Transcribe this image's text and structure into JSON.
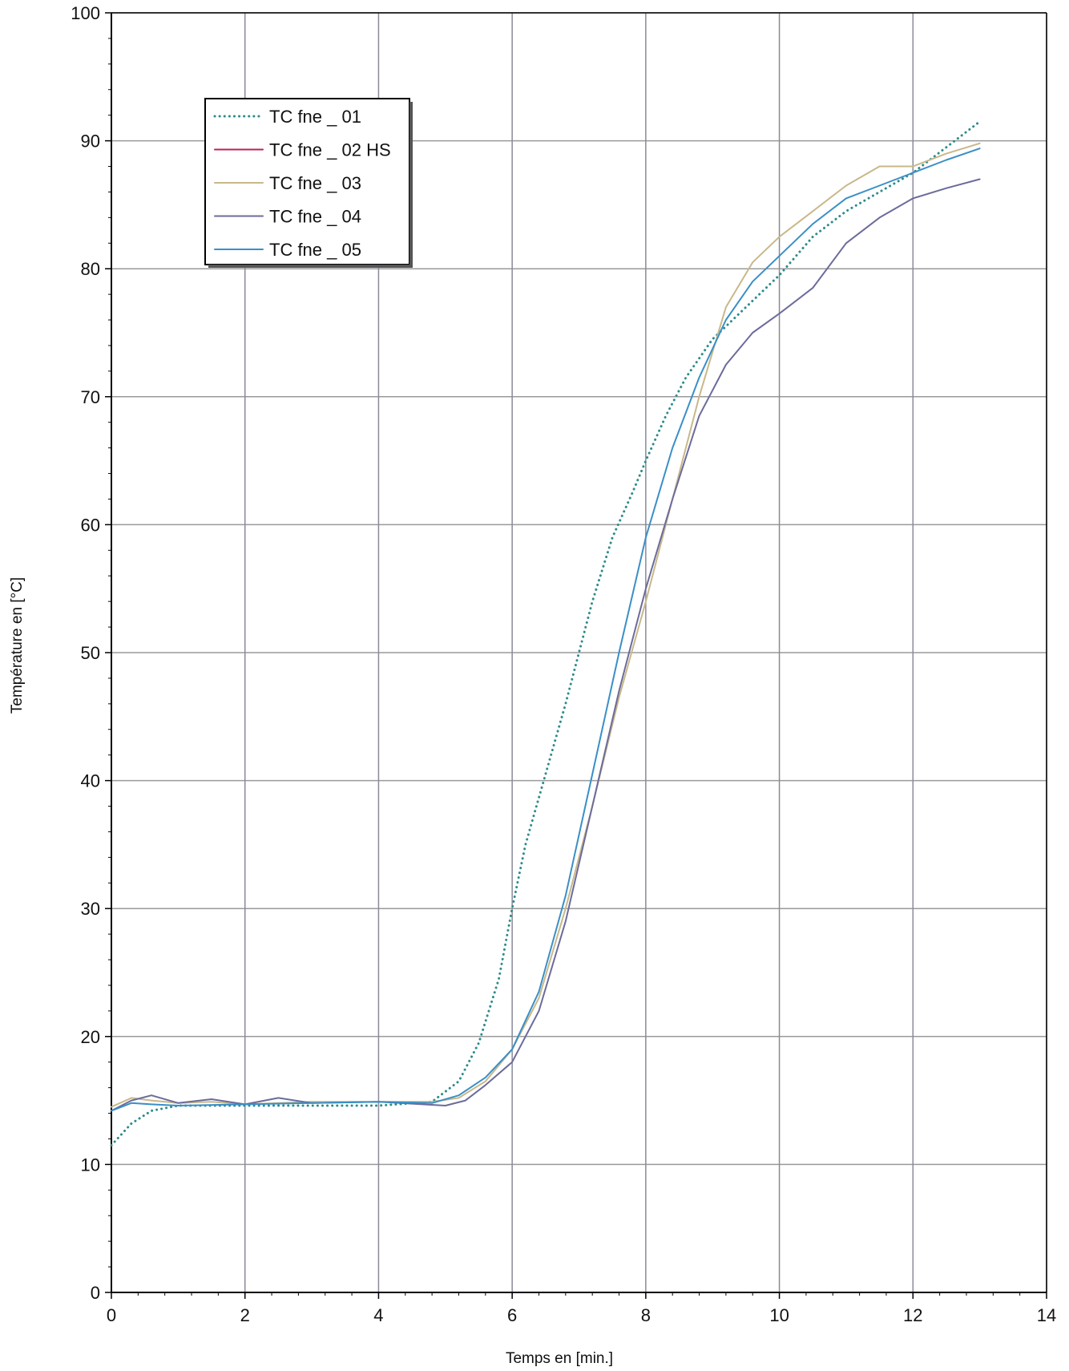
{
  "chart_data": {
    "type": "line",
    "title": "",
    "xlabel": "Temps en [min.]",
    "ylabel": "Température en [°C]",
    "xlim": [
      0,
      14
    ],
    "ylim": [
      0,
      100
    ],
    "xticks": [
      0,
      2,
      4,
      6,
      8,
      10,
      12,
      14
    ],
    "yticks": [
      0,
      10,
      20,
      30,
      40,
      50,
      60,
      70,
      80,
      90,
      100
    ],
    "grid": true,
    "legend_position": "top-left",
    "series": [
      {
        "name": "TC fne _ 01",
        "color": "#2e8b8b",
        "dash": "dotted",
        "x": [
          0,
          0.3,
          0.6,
          1,
          2,
          3,
          4,
          4.8,
          5.2,
          5.5,
          5.8,
          6.0,
          6.2,
          6.5,
          6.8,
          7.0,
          7.2,
          7.5,
          7.8,
          8.0,
          8.3,
          8.6,
          9.0,
          9.5,
          10.0,
          10.5,
          11.0,
          11.5,
          12.0,
          12.5,
          13.0
        ],
        "y": [
          11.5,
          13.2,
          14.2,
          14.6,
          14.6,
          14.6,
          14.6,
          14.9,
          16.5,
          19.5,
          24.5,
          30,
          35,
          40.5,
          46,
          50,
          54,
          59,
          62.5,
          65,
          68.5,
          71.5,
          74.5,
          77,
          79.5,
          82.5,
          84.5,
          86,
          87.5,
          89.5,
          91.5
        ]
      },
      {
        "name": "TC fne _ 02 HS",
        "color": "#c21e56",
        "dash": "solid",
        "x": [],
        "y": []
      },
      {
        "name": "TC fne _ 03",
        "color": "#c8b88a",
        "dash": "solid",
        "x": [
          0,
          0.3,
          0.6,
          1,
          1.5,
          2,
          3,
          4,
          4.8,
          5.2,
          5.6,
          6.0,
          6.4,
          6.8,
          7.2,
          7.6,
          8.0,
          8.4,
          8.8,
          9.2,
          9.6,
          10.0,
          10.5,
          11.0,
          11.5,
          12.0,
          12.5,
          13.0
        ],
        "y": [
          14.5,
          15.2,
          15.0,
          14.8,
          14.9,
          14.7,
          14.9,
          14.9,
          14.9,
          15.2,
          16.5,
          19,
          23,
          30,
          38,
          46.5,
          54,
          62,
          70,
          77,
          80.5,
          82.5,
          84.5,
          86.5,
          88,
          88,
          89,
          89.8
        ]
      },
      {
        "name": "TC fne _ 04",
        "color": "#6b6b9c",
        "dash": "solid",
        "x": [
          0,
          0.3,
          0.6,
          1,
          1.5,
          2,
          2.5,
          3,
          4,
          5.0,
          5.3,
          5.6,
          6.0,
          6.4,
          6.8,
          7.2,
          7.6,
          8.0,
          8.4,
          8.8,
          9.2,
          9.6,
          10.0,
          10.5,
          11.0,
          11.5,
          12.0,
          12.5,
          13.0
        ],
        "y": [
          14.2,
          15.0,
          15.4,
          14.8,
          15.1,
          14.7,
          15.2,
          14.8,
          14.9,
          14.6,
          15.0,
          16.2,
          18,
          22,
          29,
          38,
          47,
          55,
          62,
          68.5,
          72.5,
          75,
          76.5,
          78.5,
          82,
          84,
          85.5,
          86.3,
          87
        ]
      },
      {
        "name": "TC fne _ 05",
        "color": "#3a8fc7",
        "dash": "solid",
        "x": [
          0,
          0.3,
          0.6,
          1,
          2,
          3,
          4,
          4.8,
          5.2,
          5.6,
          6.0,
          6.4,
          6.8,
          7.2,
          7.6,
          8.0,
          8.4,
          8.8,
          9.2,
          9.6,
          10.0,
          10.5,
          11.0,
          11.5,
          12.0,
          12.5,
          13.0
        ],
        "y": [
          14.2,
          14.8,
          14.7,
          14.6,
          14.7,
          14.8,
          14.9,
          14.8,
          15.4,
          16.8,
          19.0,
          23.5,
          31,
          40.5,
          50,
          59,
          66,
          71.5,
          76,
          79,
          81,
          83.5,
          85.5,
          86.5,
          87.5,
          88.5,
          89.4
        ]
      }
    ]
  }
}
